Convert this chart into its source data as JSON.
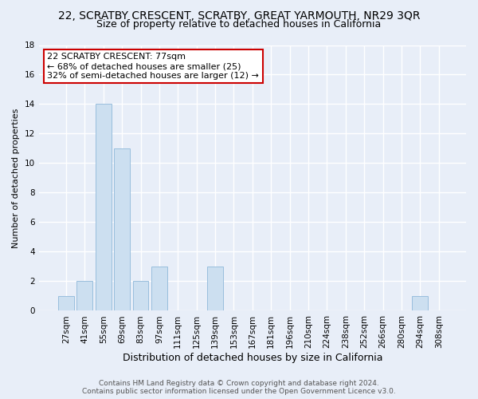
{
  "title_line1": "22, SCRATBY CRESCENT, SCRATBY, GREAT YARMOUTH, NR29 3QR",
  "title_line2": "Size of property relative to detached houses in California",
  "xlabel": "Distribution of detached houses by size in California",
  "ylabel": "Number of detached properties",
  "bar_labels": [
    "27sqm",
    "41sqm",
    "55sqm",
    "69sqm",
    "83sqm",
    "97sqm",
    "111sqm",
    "125sqm",
    "139sqm",
    "153sqm",
    "167sqm",
    "181sqm",
    "196sqm",
    "210sqm",
    "224sqm",
    "238sqm",
    "252sqm",
    "266sqm",
    "280sqm",
    "294sqm",
    "308sqm"
  ],
  "bar_values": [
    1,
    2,
    14,
    11,
    2,
    3,
    0,
    0,
    3,
    0,
    0,
    0,
    0,
    0,
    0,
    0,
    0,
    0,
    0,
    1,
    0
  ],
  "bar_color": "#ccdff0",
  "bar_edge_color": "#99bedd",
  "ylim": [
    0,
    18
  ],
  "yticks": [
    0,
    2,
    4,
    6,
    8,
    10,
    12,
    14,
    16,
    18
  ],
  "annotation_title": "22 SCRATBY CRESCENT: 77sqm",
  "annotation_line1": "← 68% of detached houses are smaller (25)",
  "annotation_line2": "32% of semi-detached houses are larger (12) →",
  "annotation_box_color": "#ffffff",
  "annotation_box_edge": "#cc0000",
  "footer_line1": "Contains HM Land Registry data © Crown copyright and database right 2024.",
  "footer_line2": "Contains public sector information licensed under the Open Government Licence v3.0.",
  "background_color": "#e8eef8",
  "grid_color": "#ffffff",
  "title1_fontsize": 10,
  "title2_fontsize": 9,
  "ylabel_fontsize": 8,
  "xlabel_fontsize": 9,
  "tick_fontsize": 7.5,
  "footer_fontsize": 6.5,
  "ann_fontsize": 8
}
